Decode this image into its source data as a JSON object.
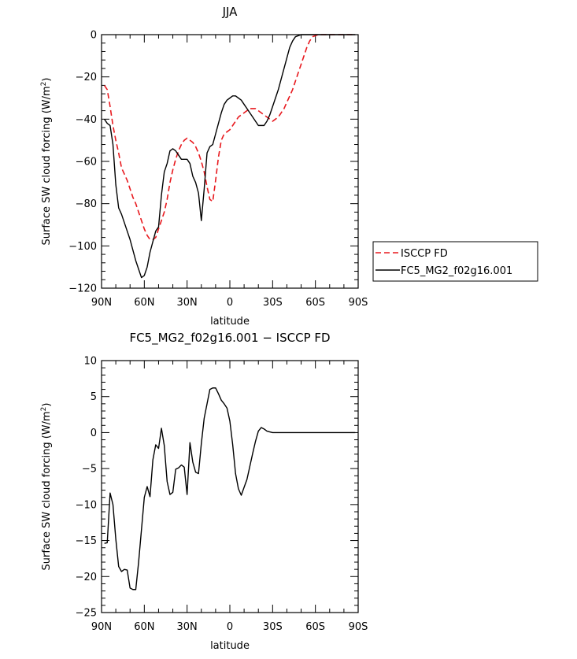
{
  "chart_data": [
    {
      "type": "line",
      "title": "JJA",
      "xlabel": "latitude",
      "ylabel": "Surface SW cloud forcing (W/m²)",
      "ylabel_base": "Surface SW cloud forcing (W/m",
      "ylabel_sup": "2",
      "ylabel_end": ")",
      "xlim": [
        90,
        -90
      ],
      "ylim": [
        -120,
        0
      ],
      "xticks": [
        90,
        60,
        30,
        0,
        -30,
        -60,
        -90
      ],
      "xtick_labels": [
        "90N",
        "60N",
        "30N",
        "0",
        "30S",
        "60S",
        "90S"
      ],
      "yticks": [
        0,
        -20,
        -40,
        -60,
        -80,
        -100,
        -120
      ],
      "ytick_labels": [
        "0",
        "−20",
        "−40",
        "−60",
        "−80",
        "−100",
        "−120"
      ],
      "grid": false,
      "legend": "right-outside",
      "series": [
        {
          "name": "ISCCP FD",
          "color": "#e8191e",
          "dash": "dashed",
          "x": [
            88,
            86,
            84,
            82,
            80,
            78,
            76,
            74,
            72,
            70,
            68,
            66,
            64,
            62,
            60,
            58,
            56,
            54,
            52,
            50,
            48,
            46,
            44,
            42,
            40,
            38,
            36,
            34,
            32,
            30,
            28,
            26,
            24,
            22,
            20,
            18,
            16,
            14,
            12,
            10,
            8,
            6,
            4,
            2,
            0,
            -2,
            -4,
            -6,
            -8,
            -10,
            -12,
            -14,
            -16,
            -18,
            -20,
            -22,
            -24,
            -26,
            -28,
            -30,
            -32,
            -34,
            -36,
            -38,
            -40,
            -42,
            -44,
            -46,
            -48,
            -50,
            -52,
            -54,
            -56,
            -58,
            -60,
            -62,
            -64,
            -66,
            -68,
            -70,
            -72,
            -74,
            -76,
            -78,
            -80,
            -82,
            -84,
            -86,
            -88
          ],
          "y": [
            -24,
            -26,
            -34,
            -43,
            -50,
            -56,
            -63,
            -66,
            -69,
            -73,
            -77,
            -80,
            -84,
            -88,
            -92,
            -95,
            -97,
            -97,
            -96,
            -92,
            -88,
            -84,
            -78,
            -70,
            -64,
            -59,
            -55,
            -52,
            -50,
            -49,
            -50,
            -51,
            -53,
            -56,
            -60,
            -65,
            -72,
            -78,
            -79,
            -69,
            -58,
            -50,
            -47,
            -46,
            -45,
            -43,
            -41,
            -39,
            -38,
            -37,
            -36,
            -35,
            -35,
            -35,
            -36,
            -37,
            -38,
            -39,
            -40,
            -41,
            -40,
            -39,
            -37,
            -35,
            -32,
            -29,
            -26,
            -22,
            -18,
            -14,
            -10,
            -6,
            -3,
            -1,
            -0.5,
            0,
            0,
            0,
            0,
            0,
            0,
            0,
            0,
            0,
            0,
            0,
            0,
            0,
            0
          ]
        },
        {
          "name": "FC5_MG2_f02g16.001",
          "color": "#000000",
          "dash": "solid",
          "x": [
            88,
            86,
            84,
            82,
            80,
            78,
            76,
            74,
            72,
            70,
            68,
            66,
            64,
            62,
            60,
            58,
            56,
            54,
            52,
            50,
            48,
            46,
            44,
            42,
            40,
            38,
            36,
            34,
            32,
            30,
            28,
            26,
            24,
            22,
            20,
            18,
            16,
            14,
            12,
            10,
            8,
            6,
            4,
            2,
            0,
            -2,
            -4,
            -6,
            -8,
            -10,
            -12,
            -14,
            -16,
            -18,
            -20,
            -22,
            -24,
            -26,
            -28,
            -30,
            -32,
            -34,
            -36,
            -38,
            -40,
            -42,
            -44,
            -46,
            -48,
            -50,
            -52,
            -54,
            -56,
            -58,
            -60,
            -62,
            -64,
            -66,
            -68,
            -70,
            -72,
            -74,
            -76,
            -78,
            -80,
            -82,
            -84,
            -86,
            -88
          ],
          "y": [
            -40,
            -42,
            -43,
            -52,
            -71,
            -82,
            -85,
            -89,
            -93,
            -97,
            -102,
            -107,
            -111,
            -115,
            -114,
            -110,
            -103,
            -98,
            -93,
            -91,
            -76,
            -65,
            -61,
            -55,
            -54,
            -55,
            -57,
            -59,
            -59,
            -59,
            -61,
            -67,
            -70,
            -75,
            -88,
            -73,
            -56,
            -53,
            -52,
            -47,
            -42,
            -37,
            -33,
            -31,
            -30,
            -29,
            -29,
            -30,
            -31,
            -33,
            -35,
            -37,
            -39,
            -41,
            -43,
            -43,
            -43,
            -41,
            -38,
            -34,
            -30,
            -26,
            -21,
            -16,
            -11,
            -6,
            -3,
            -1,
            -0.5,
            0,
            0,
            0,
            0,
            0,
            0,
            0,
            0,
            0,
            0,
            0,
            0,
            0,
            0,
            0,
            0,
            0,
            0,
            0,
            0
          ]
        }
      ]
    },
    {
      "type": "line",
      "title": "FC5_MG2_f02g16.001 − ISCCP FD",
      "xlabel": "latitude",
      "ylabel": "Surface SW cloud forcing (W/m²)",
      "ylabel_base": "Surface SW cloud forcing (W/m",
      "ylabel_sup": "2",
      "ylabel_end": ")",
      "xlim": [
        90,
        -90
      ],
      "ylim": [
        -25,
        10
      ],
      "xticks": [
        90,
        60,
        30,
        0,
        -30,
        -60,
        -90
      ],
      "xtick_labels": [
        "90N",
        "60N",
        "30N",
        "0",
        "30S",
        "60S",
        "90S"
      ],
      "yticks": [
        10,
        5,
        0,
        -5,
        -10,
        -15,
        -20,
        -25
      ],
      "ytick_labels": [
        "10",
        "5",
        "0",
        "−5",
        "−10",
        "−15",
        "−20",
        "−25"
      ],
      "grid": false,
      "series": [
        {
          "color": "#000000",
          "dash": "solid",
          "x": [
            88,
            86,
            84,
            82,
            80,
            78,
            76,
            74,
            72,
            70,
            68,
            66,
            64,
            62,
            60,
            58,
            56,
            54,
            52,
            50,
            48,
            46,
            44,
            42,
            40,
            38,
            36,
            34,
            32,
            30,
            28,
            26,
            24,
            22,
            20,
            18,
            16,
            14,
            12,
            10,
            8,
            6,
            4,
            2,
            0,
            -2,
            -4,
            -6,
            -8,
            -10,
            -12,
            -14,
            -16,
            -18,
            -20,
            -22,
            -24,
            -26,
            -28,
            -30,
            -32,
            -34,
            -36,
            -38,
            -40,
            -42,
            -44,
            -46,
            -48,
            -50,
            -52,
            -54,
            -56,
            -58,
            -60,
            -62,
            -64,
            -66,
            -68,
            -70,
            -72,
            -74,
            -76,
            -78,
            -80,
            -82,
            -84,
            -86,
            -88
          ],
          "y": [
            -15.4,
            -15.3,
            -8.4,
            -10.0,
            -14.8,
            -18.6,
            -19.3,
            -19.0,
            -19.1,
            -21.6,
            -21.8,
            -21.8,
            -18.0,
            -13.5,
            -9.0,
            -7.5,
            -8.9,
            -3.8,
            -1.7,
            -2.2,
            0.6,
            -1.8,
            -6.8,
            -8.6,
            -8.3,
            -5.1,
            -4.9,
            -4.5,
            -4.8,
            -8.6,
            -1.4,
            -4.1,
            -5.5,
            -5.7,
            -1.5,
            2.0,
            4.0,
            6.0,
            6.2,
            6.2,
            5.4,
            4.5,
            4.0,
            3.4,
            1.6,
            -1.7,
            -5.7,
            -7.8,
            -8.7,
            -7.6,
            -6.5,
            -4.7,
            -2.9,
            -1.2,
            0.2,
            0.7,
            0.5,
            0.2,
            0.1,
            0.0,
            0.0,
            0.0,
            0.0,
            0.0,
            0.0,
            0.0,
            0.0,
            0.0,
            0.0,
            0.0,
            0.0,
            0.0,
            0.0,
            0.0,
            0.0,
            0.0,
            0.0,
            0.0,
            0.0,
            0.0,
            0.0,
            0.0,
            0.0,
            0.0,
            0.0,
            0.0,
            0.0,
            0.0,
            0.0
          ]
        }
      ]
    }
  ]
}
